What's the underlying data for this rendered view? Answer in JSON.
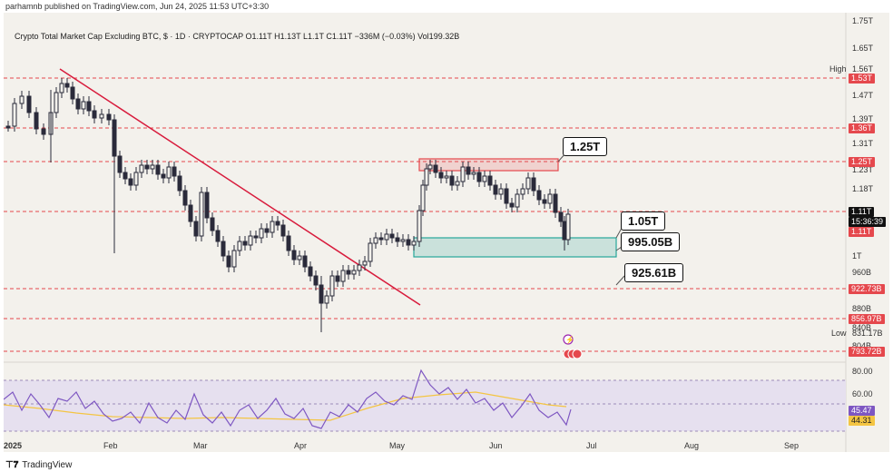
{
  "header": {
    "published": "parhamnb published on TradingView.com, Jun 24, 2025 11:53 UTC+3:30"
  },
  "legend": {
    "symbol": "Crypto Total Market Cap Excluding BTC, $ · 1D · CRYPTOCAP",
    "open": "O1.11T",
    "high": "H1.13T",
    "low": "L1.1T",
    "close": "C1.11T",
    "change": "−336M (−0.03%)",
    "volume": "Vol199.32B"
  },
  "price_axis": {
    "ticks": [
      "1.75T",
      "1.65T",
      "1.56T",
      "1.47T",
      "1.39T",
      "1.31T",
      "1.23T",
      "1.18T",
      "1T",
      "960B",
      "880B",
      "840B",
      "804B"
    ],
    "high_label": "High",
    "low_label": "Low",
    "low_value": "831.17B",
    "tags": [
      {
        "text": "1.53T",
        "color": "#e5484d"
      },
      {
        "text": "1.36T",
        "color": "#e5484d"
      },
      {
        "text": "1.25T",
        "color": "#e5484d"
      },
      {
        "text": "1.11T",
        "color": "#111111"
      },
      {
        "text": "15:36:39",
        "color": "#111111"
      },
      {
        "text": "1.11T",
        "color": "#e5484d"
      },
      {
        "text": "922.73B",
        "color": "#e5484d"
      },
      {
        "text": "856.97B",
        "color": "#e5484d"
      },
      {
        "text": "793.72B",
        "color": "#e5484d"
      }
    ]
  },
  "rsi_axis": {
    "ticks": [
      "80.00",
      "60.00"
    ],
    "value_rsi": "45.47",
    "value_ma": "44.31"
  },
  "time_axis": [
    "2025",
    "Feb",
    "Mar",
    "Apr",
    "May",
    "Jun",
    "Jul",
    "Aug",
    "Sep"
  ],
  "callouts": {
    "resistance": "1.25T",
    "level_105": "1.05T",
    "level_995": "995.05B",
    "level_925": "925.61B"
  },
  "watermark": "TradingView",
  "colors": {
    "background": "#f3f1ec",
    "bull": "#2a2a3a",
    "bear": "#2a2a3a",
    "trendline": "#d81b3c",
    "dashed_levels": "#e5484d",
    "demand_zone": "#26a69a",
    "supply_zone": "#e5484d",
    "rsi": "#7e57c2",
    "rsi_ma": "#f4c542"
  }
}
